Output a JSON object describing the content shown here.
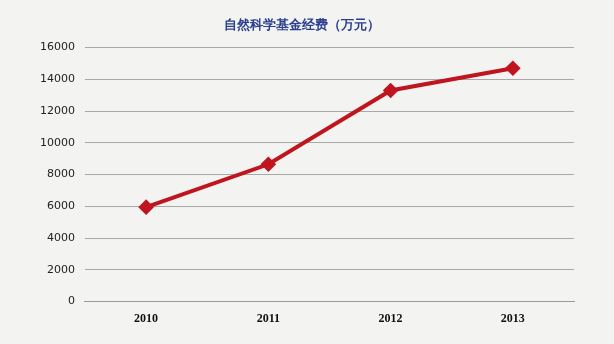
{
  "chart_data": {
    "type": "line",
    "title": "自然科学基金经费（万元）",
    "categories": [
      "2010",
      "2011",
      "2012",
      "2013"
    ],
    "values": [
      5950,
      8650,
      13300,
      14700
    ],
    "color": "#c0141e",
    "marker": "diamond",
    "line_style": "solid",
    "ylim": [
      0,
      16000
    ],
    "yticks": [
      0,
      2000,
      4000,
      6000,
      8000,
      10000,
      12000,
      14000,
      16000
    ],
    "grid": true
  }
}
